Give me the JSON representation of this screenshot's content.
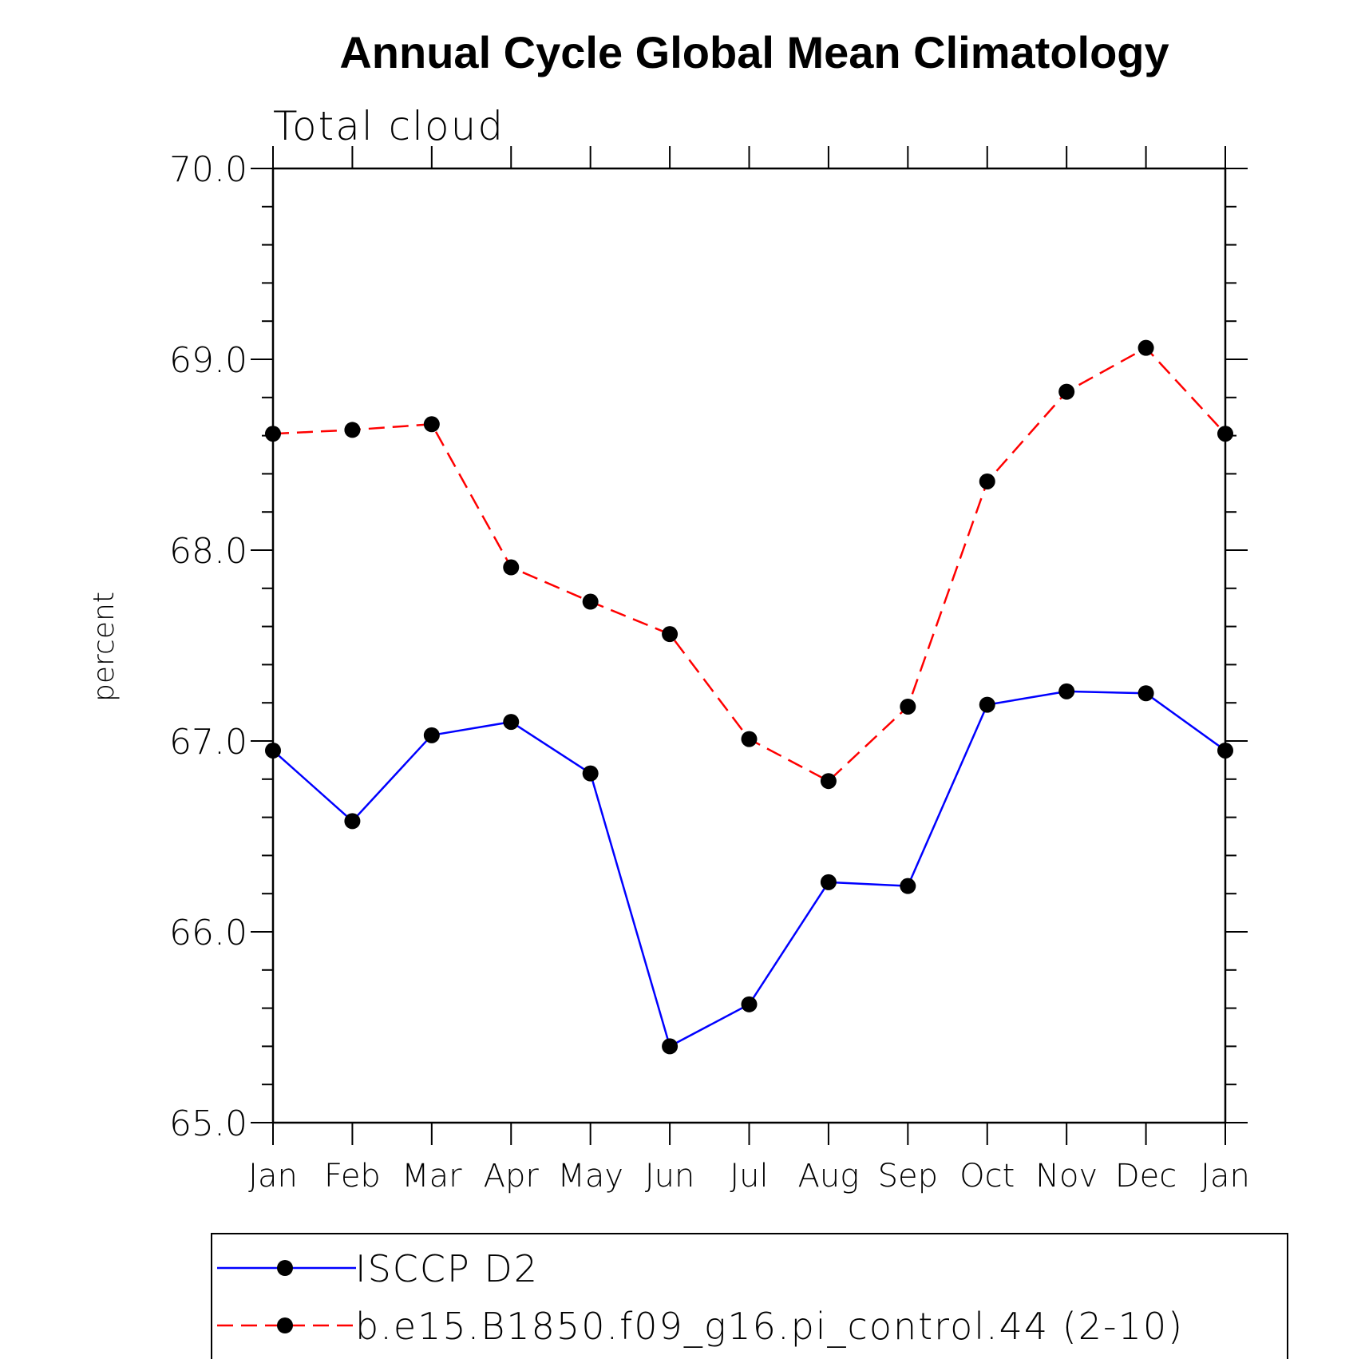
{
  "chart_data": {
    "type": "line",
    "title": "Annual Cycle Global Mean Climatology",
    "subtitle": "Total cloud",
    "ylabel": "percent",
    "xlabel": "",
    "ylim": [
      65.0,
      70.0
    ],
    "yticks": [
      "65.0",
      "66.0",
      "67.0",
      "68.0",
      "69.0",
      "70.0"
    ],
    "categories": [
      "Jan",
      "Feb",
      "Mar",
      "Apr",
      "May",
      "Jun",
      "Jul",
      "Aug",
      "Sep",
      "Oct",
      "Nov",
      "Dec",
      "Jan"
    ],
    "series": [
      {
        "name": "ISCCP D2",
        "color": "#0000ff",
        "dashed": false,
        "values": [
          66.95,
          66.58,
          67.03,
          67.1,
          66.83,
          65.4,
          65.62,
          66.26,
          66.24,
          67.19,
          67.26,
          67.25,
          66.95
        ]
      },
      {
        "name": "b.e15.B1850.f09_g16.pi_control.44 (2-10)",
        "color": "#ff0000",
        "dashed": true,
        "values": [
          68.61,
          68.63,
          68.66,
          67.91,
          67.73,
          67.56,
          67.01,
          66.79,
          67.18,
          68.36,
          68.83,
          69.06,
          68.61
        ]
      }
    ],
    "legend": "bottom",
    "grid": false
  }
}
